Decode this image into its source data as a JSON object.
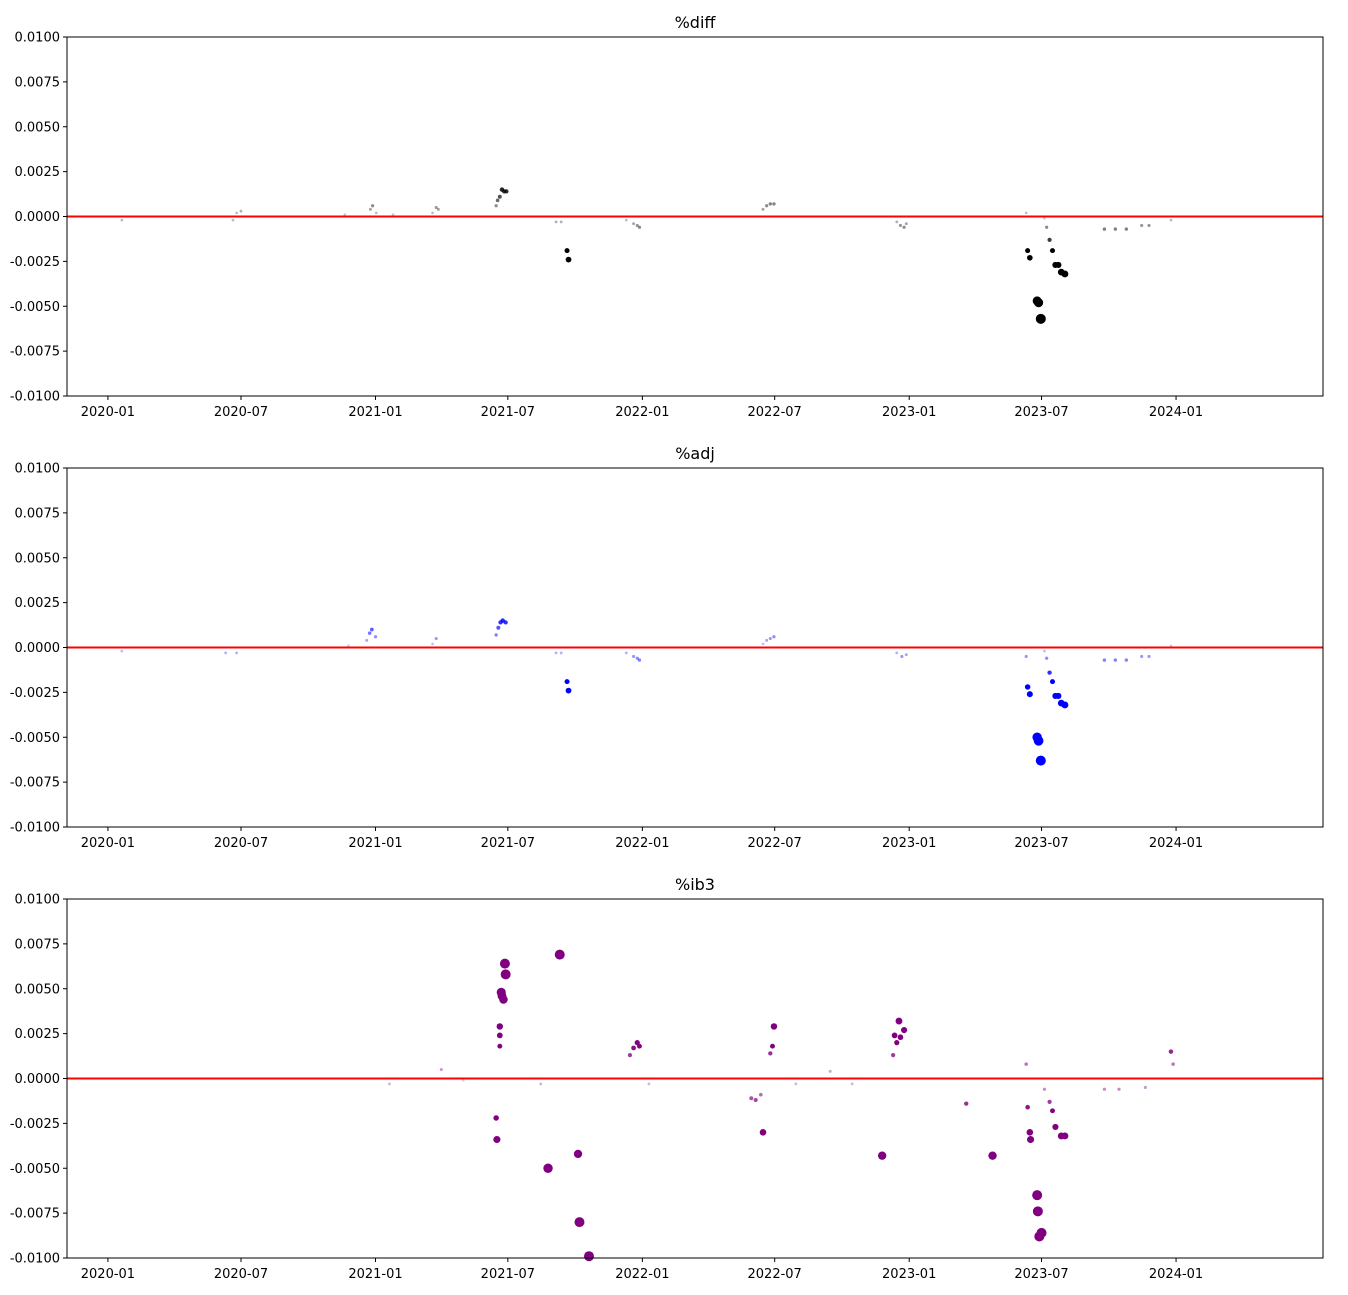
{
  "chart_data": [
    {
      "type": "scatter",
      "title": "%diff",
      "xlabel": "",
      "ylabel": "",
      "ylim": [
        -0.01,
        0.01
      ],
      "xlim": [
        "2019-11-06",
        "2024-07-20"
      ],
      "y_ticks": [
        "0.0100",
        "0.0075",
        "0.0050",
        "0.0025",
        "0.0000",
        "-0.0025",
        "-0.0050",
        "-0.0075",
        "-0.0100"
      ],
      "x_ticks": [
        "2020-01",
        "2020-07",
        "2021-01",
        "2021-07",
        "2022-01",
        "2022-07",
        "2023-01",
        "2023-07",
        "2024-01"
      ],
      "reference_line": {
        "y": 0.0,
        "color": "#ff0000"
      },
      "point_color": "#000000",
      "grid": false,
      "points": [
        {
          "x": "2020-01-20",
          "y": -0.0002
        },
        {
          "x": "2020-06-20",
          "y": -0.0002
        },
        {
          "x": "2020-06-25",
          "y": 0.0002
        },
        {
          "x": "2020-07-01",
          "y": 0.0003
        },
        {
          "x": "2020-11-20",
          "y": 0.0001
        },
        {
          "x": "2020-12-25",
          "y": 0.0004
        },
        {
          "x": "2020-12-28",
          "y": 0.0006
        },
        {
          "x": "2021-01-02",
          "y": 0.0002
        },
        {
          "x": "2021-01-25",
          "y": 0.0001
        },
        {
          "x": "2021-03-20",
          "y": 0.0002
        },
        {
          "x": "2021-03-25",
          "y": 0.0005
        },
        {
          "x": "2021-03-28",
          "y": 0.0004
        },
        {
          "x": "2021-06-15",
          "y": 0.0006
        },
        {
          "x": "2021-06-17",
          "y": 0.0009
        },
        {
          "x": "2021-06-20",
          "y": 0.0011
        },
        {
          "x": "2021-06-23",
          "y": 0.0015
        },
        {
          "x": "2021-06-26",
          "y": 0.0014
        },
        {
          "x": "2021-06-29",
          "y": 0.0014
        },
        {
          "x": "2021-09-05",
          "y": -0.0003
        },
        {
          "x": "2021-09-12",
          "y": -0.0003
        },
        {
          "x": "2021-09-20",
          "y": -0.0019
        },
        {
          "x": "2021-09-22",
          "y": -0.0024
        },
        {
          "x": "2021-12-10",
          "y": -0.0002
        },
        {
          "x": "2021-12-20",
          "y": -0.0004
        },
        {
          "x": "2021-12-25",
          "y": -0.0005
        },
        {
          "x": "2021-12-28",
          "y": -0.0006
        },
        {
          "x": "2022-06-15",
          "y": 0.0004
        },
        {
          "x": "2022-06-20",
          "y": 0.0006
        },
        {
          "x": "2022-06-25",
          "y": 0.0007
        },
        {
          "x": "2022-06-30",
          "y": 0.0007
        },
        {
          "x": "2022-12-15",
          "y": -0.0003
        },
        {
          "x": "2022-12-20",
          "y": -0.0005
        },
        {
          "x": "2022-12-25",
          "y": -0.0006
        },
        {
          "x": "2022-12-28",
          "y": -0.0004
        },
        {
          "x": "2023-06-10",
          "y": 0.0002
        },
        {
          "x": "2023-06-12",
          "y": -0.0019
        },
        {
          "x": "2023-06-15",
          "y": -0.0023
        },
        {
          "x": "2023-06-25",
          "y": -0.0047
        },
        {
          "x": "2023-06-27",
          "y": -0.0048
        },
        {
          "x": "2023-06-30",
          "y": -0.0057
        },
        {
          "x": "2023-07-05",
          "y": -0.0001
        },
        {
          "x": "2023-07-08",
          "y": -0.0006
        },
        {
          "x": "2023-07-12",
          "y": -0.0013
        },
        {
          "x": "2023-07-16",
          "y": -0.0019
        },
        {
          "x": "2023-07-20",
          "y": -0.0027
        },
        {
          "x": "2023-07-24",
          "y": -0.0027
        },
        {
          "x": "2023-07-28",
          "y": -0.0031
        },
        {
          "x": "2023-08-02",
          "y": -0.0032
        },
        {
          "x": "2023-09-25",
          "y": -0.0007
        },
        {
          "x": "2023-10-10",
          "y": -0.0007
        },
        {
          "x": "2023-10-25",
          "y": -0.0007
        },
        {
          "x": "2023-11-15",
          "y": -0.0005
        },
        {
          "x": "2023-11-25",
          "y": -0.0005
        },
        {
          "x": "2023-12-25",
          "y": -0.0002
        }
      ]
    },
    {
      "type": "scatter",
      "title": "%adj",
      "xlabel": "",
      "ylabel": "",
      "ylim": [
        -0.01,
        0.01
      ],
      "xlim": [
        "2019-11-06",
        "2024-07-20"
      ],
      "y_ticks": [
        "0.0100",
        "0.0075",
        "0.0050",
        "0.0025",
        "0.0000",
        "-0.0025",
        "-0.0050",
        "-0.0075",
        "-0.0100"
      ],
      "x_ticks": [
        "2020-01",
        "2020-07",
        "2021-01",
        "2021-07",
        "2022-01",
        "2022-07",
        "2023-01",
        "2023-07",
        "2024-01"
      ],
      "reference_line": {
        "y": 0.0,
        "color": "#ff0000"
      },
      "point_color": "#0000ff",
      "grid": false,
      "points": [
        {
          "x": "2020-01-20",
          "y": -0.0002
        },
        {
          "x": "2020-06-10",
          "y": -0.0003
        },
        {
          "x": "2020-06-25",
          "y": -0.0003
        },
        {
          "x": "2020-11-25",
          "y": 0.0001
        },
        {
          "x": "2020-12-20",
          "y": 0.0004
        },
        {
          "x": "2020-12-24",
          "y": 0.0008
        },
        {
          "x": "2020-12-27",
          "y": 0.001
        },
        {
          "x": "2021-01-01",
          "y": 0.0006
        },
        {
          "x": "2021-03-20",
          "y": 0.0002
        },
        {
          "x": "2021-03-25",
          "y": 0.0005
        },
        {
          "x": "2021-06-15",
          "y": 0.0007
        },
        {
          "x": "2021-06-18",
          "y": 0.0011
        },
        {
          "x": "2021-06-21",
          "y": 0.0014
        },
        {
          "x": "2021-06-24",
          "y": 0.0015
        },
        {
          "x": "2021-06-28",
          "y": 0.0014
        },
        {
          "x": "2021-09-05",
          "y": -0.0003
        },
        {
          "x": "2021-09-12",
          "y": -0.0003
        },
        {
          "x": "2021-09-20",
          "y": -0.0019
        },
        {
          "x": "2021-09-22",
          "y": -0.0024
        },
        {
          "x": "2021-12-10",
          "y": -0.0003
        },
        {
          "x": "2021-12-20",
          "y": -0.0005
        },
        {
          "x": "2021-12-25",
          "y": -0.0006
        },
        {
          "x": "2021-12-28",
          "y": -0.0007
        },
        {
          "x": "2022-06-15",
          "y": 0.0002
        },
        {
          "x": "2022-06-20",
          "y": 0.0004
        },
        {
          "x": "2022-06-25",
          "y": 0.0005
        },
        {
          "x": "2022-06-30",
          "y": 0.0006
        },
        {
          "x": "2022-12-15",
          "y": -0.0003
        },
        {
          "x": "2022-12-22",
          "y": -0.0005
        },
        {
          "x": "2022-12-28",
          "y": -0.0004
        },
        {
          "x": "2023-06-10",
          "y": -0.0005
        },
        {
          "x": "2023-06-12",
          "y": -0.0022
        },
        {
          "x": "2023-06-15",
          "y": -0.0026
        },
        {
          "x": "2023-06-25",
          "y": -0.005
        },
        {
          "x": "2023-06-27",
          "y": -0.0052
        },
        {
          "x": "2023-06-30",
          "y": -0.0063
        },
        {
          "x": "2023-07-05",
          "y": -0.0002
        },
        {
          "x": "2023-07-08",
          "y": -0.0006
        },
        {
          "x": "2023-07-12",
          "y": -0.0014
        },
        {
          "x": "2023-07-16",
          "y": -0.0019
        },
        {
          "x": "2023-07-20",
          "y": -0.0027
        },
        {
          "x": "2023-07-24",
          "y": -0.0027
        },
        {
          "x": "2023-07-28",
          "y": -0.0031
        },
        {
          "x": "2023-08-02",
          "y": -0.0032
        },
        {
          "x": "2023-09-25",
          "y": -0.0007
        },
        {
          "x": "2023-10-10",
          "y": -0.0007
        },
        {
          "x": "2023-10-25",
          "y": -0.0007
        },
        {
          "x": "2023-11-15",
          "y": -0.0005
        },
        {
          "x": "2023-11-25",
          "y": -0.0005
        },
        {
          "x": "2023-12-25",
          "y": 0.0001
        }
      ]
    },
    {
      "type": "scatter",
      "title": "%ib3",
      "xlabel": "",
      "ylabel": "",
      "ylim": [
        -0.01,
        0.01
      ],
      "xlim": [
        "2019-11-06",
        "2024-07-20"
      ],
      "y_ticks": [
        "0.0100",
        "0.0075",
        "0.0050",
        "0.0025",
        "0.0000",
        "-0.0025",
        "-0.0050",
        "-0.0075",
        "-0.0100"
      ],
      "x_ticks": [
        "2020-01",
        "2020-07",
        "2021-01",
        "2021-07",
        "2022-01",
        "2022-07",
        "2023-01",
        "2023-07",
        "2024-01"
      ],
      "reference_line": {
        "y": 0.0,
        "color": "#ff0000"
      },
      "point_color": "#800080",
      "grid": false,
      "points": [
        {
          "x": "2021-01-20",
          "y": -0.0003
        },
        {
          "x": "2021-04-01",
          "y": 0.0005
        },
        {
          "x": "2021-05-01",
          "y": -0.0001
        },
        {
          "x": "2021-06-15",
          "y": -0.0022
        },
        {
          "x": "2021-06-16",
          "y": -0.0034
        },
        {
          "x": "2021-06-20",
          "y": 0.0018
        },
        {
          "x": "2021-06-20",
          "y": 0.0024
        },
        {
          "x": "2021-06-20",
          "y": 0.0029
        },
        {
          "x": "2021-06-22",
          "y": 0.0048
        },
        {
          "x": "2021-06-23",
          "y": 0.0046
        },
        {
          "x": "2021-06-25",
          "y": 0.0044
        },
        {
          "x": "2021-06-27",
          "y": 0.0064
        },
        {
          "x": "2021-06-28",
          "y": 0.0058
        },
        {
          "x": "2021-08-15",
          "y": -0.0003
        },
        {
          "x": "2021-08-25",
          "y": -0.005
        },
        {
          "x": "2021-09-10",
          "y": 0.0069
        },
        {
          "x": "2021-10-05",
          "y": -0.0042
        },
        {
          "x": "2021-10-07",
          "y": -0.008
        },
        {
          "x": "2021-10-20",
          "y": -0.0099
        },
        {
          "x": "2021-12-15",
          "y": 0.0013
        },
        {
          "x": "2021-12-20",
          "y": 0.0017
        },
        {
          "x": "2021-12-25",
          "y": 0.002
        },
        {
          "x": "2021-12-28",
          "y": 0.0018
        },
        {
          "x": "2022-01-10",
          "y": -0.0003
        },
        {
          "x": "2022-05-30",
          "y": -0.0011
        },
        {
          "x": "2022-06-05",
          "y": -0.0012
        },
        {
          "x": "2022-06-12",
          "y": -0.0009
        },
        {
          "x": "2022-06-15",
          "y": -0.003
        },
        {
          "x": "2022-06-25",
          "y": 0.0014
        },
        {
          "x": "2022-06-28",
          "y": 0.0018
        },
        {
          "x": "2022-06-30",
          "y": 0.0029
        },
        {
          "x": "2022-07-30",
          "y": -0.0003
        },
        {
          "x": "2022-09-15",
          "y": 0.0004
        },
        {
          "x": "2022-10-15",
          "y": -0.0003
        },
        {
          "x": "2022-11-25",
          "y": -0.0043
        },
        {
          "x": "2022-12-10",
          "y": 0.0013
        },
        {
          "x": "2022-12-12",
          "y": 0.0024
        },
        {
          "x": "2022-12-15",
          "y": 0.002
        },
        {
          "x": "2022-12-18",
          "y": 0.0032
        },
        {
          "x": "2022-12-20",
          "y": 0.0023
        },
        {
          "x": "2022-12-25",
          "y": 0.0027
        },
        {
          "x": "2023-03-20",
          "y": -0.0014
        },
        {
          "x": "2023-04-25",
          "y": -0.0043
        },
        {
          "x": "2023-06-10",
          "y": 0.0008
        },
        {
          "x": "2023-06-12",
          "y": -0.0016
        },
        {
          "x": "2023-06-15",
          "y": -0.003
        },
        {
          "x": "2023-06-16",
          "y": -0.0034
        },
        {
          "x": "2023-06-25",
          "y": -0.0065
        },
        {
          "x": "2023-06-26",
          "y": -0.0074
        },
        {
          "x": "2023-06-28",
          "y": -0.0088
        },
        {
          "x": "2023-07-01",
          "y": -0.0086
        },
        {
          "x": "2023-07-05",
          "y": -0.0006
        },
        {
          "x": "2023-07-12",
          "y": -0.0013
        },
        {
          "x": "2023-07-16",
          "y": -0.0018
        },
        {
          "x": "2023-07-20",
          "y": -0.0027
        },
        {
          "x": "2023-07-28",
          "y": -0.0032
        },
        {
          "x": "2023-08-02",
          "y": -0.0032
        },
        {
          "x": "2023-09-25",
          "y": -0.0006
        },
        {
          "x": "2023-10-15",
          "y": -0.0006
        },
        {
          "x": "2023-11-20",
          "y": -0.0005
        },
        {
          "x": "2023-12-25",
          "y": 0.0015
        },
        {
          "x": "2023-12-28",
          "y": 0.0008
        }
      ]
    }
  ]
}
